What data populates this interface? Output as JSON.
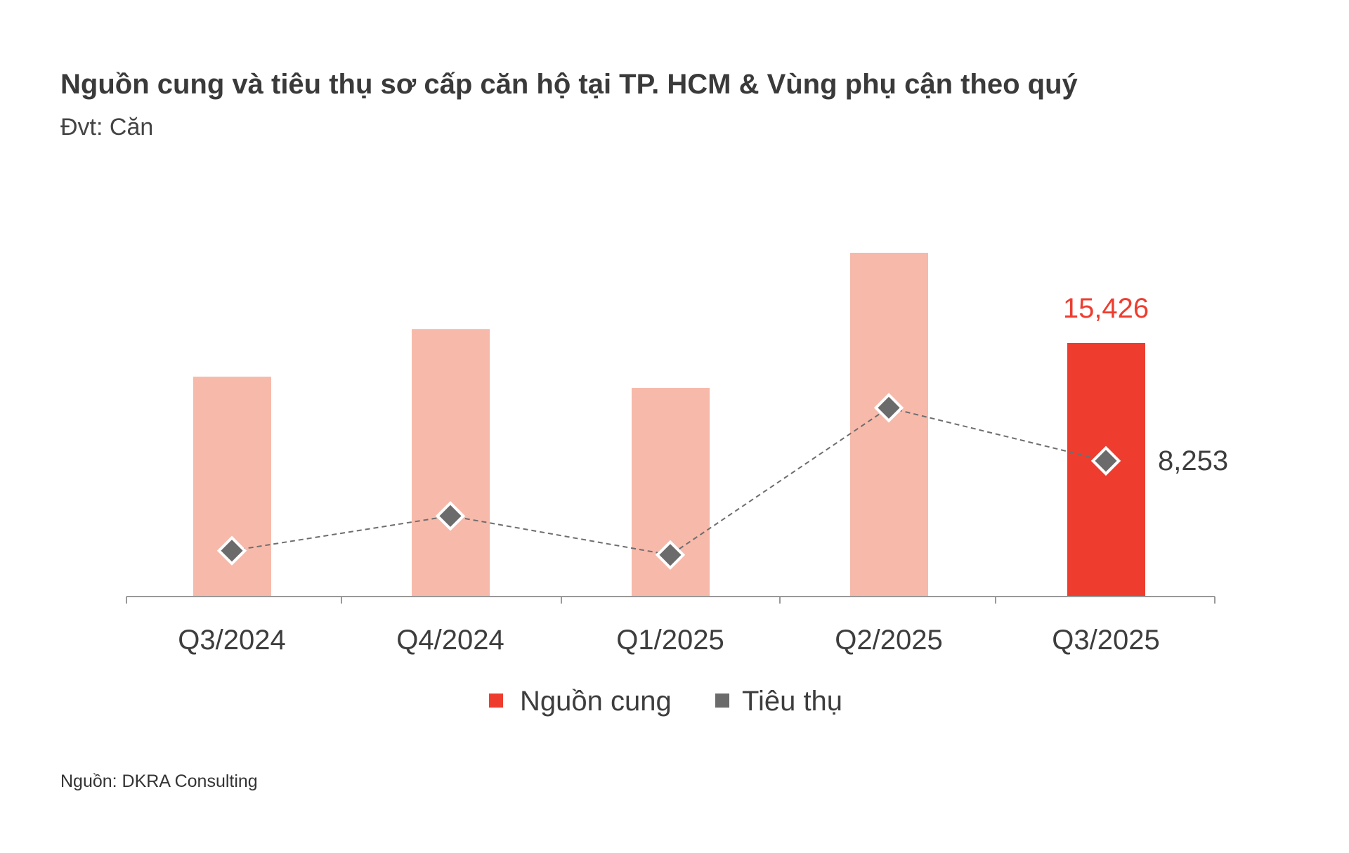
{
  "title": "Nguồn cung và tiêu thụ sơ cấp căn hộ tại TP. HCM & Vùng phụ cận theo quý",
  "subtitle": "Đvt: Căn",
  "source": "Nguồn: DKRA Consulting",
  "colors": {
    "bar": "#f7b9aa",
    "bar_highlight": "#ee3d2f",
    "line": "#6e6e6e",
    "marker": "#6b6b6b",
    "label_supply": "#ee3d2f",
    "label_sales": "#3d3d3d"
  },
  "chart_data": {
    "type": "bar",
    "title": "Nguồn cung và tiêu thụ sơ cấp căn hộ tại TP. HCM & Vùng phụ cận theo quý",
    "xlabel": "",
    "ylabel": "Đvt: Căn",
    "categories": [
      "Q3/2024",
      "Q4/2024",
      "Q1/2025",
      "Q2/2025",
      "Q3/2025"
    ],
    "series": [
      {
        "name": "Nguồn cung",
        "type": "bar",
        "values": [
          13370,
          16270,
          12690,
          20900,
          15426
        ]
      },
      {
        "name": "Tiêu thụ",
        "type": "line",
        "values": [
          2790,
          4900,
          2530,
          11480,
          8253
        ]
      }
    ],
    "data_labels": {
      "supply_last": "15,426",
      "sales_last": "8,253"
    },
    "ylim": [
      0,
      22000
    ],
    "grid": false,
    "legend": {
      "placement": "bottom",
      "entries": [
        "Nguồn cung",
        "Tiêu thụ"
      ]
    }
  }
}
